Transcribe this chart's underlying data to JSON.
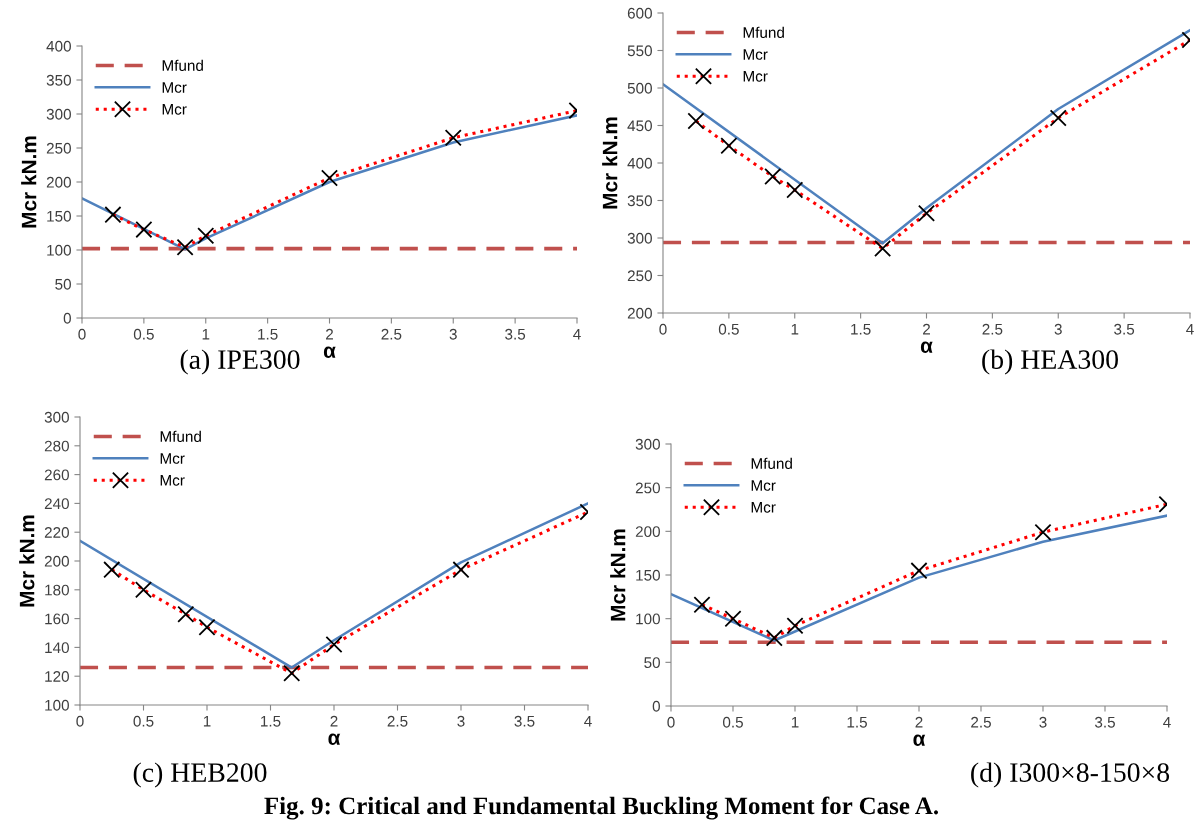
{
  "chart_data": [
    {
      "type": "line",
      "title": "(a) IPE300",
      "xlabel": "α",
      "ylabel": "Mcr kN.m",
      "xlim": [
        0,
        4
      ],
      "xticks": [
        0,
        0.5,
        1,
        1.5,
        2,
        2.5,
        3,
        3.5,
        4
      ],
      "ylim": [
        0,
        400
      ],
      "yticks": [
        0,
        50,
        100,
        150,
        200,
        250,
        300,
        350,
        400
      ],
      "grid": false,
      "legend": "top left",
      "series": [
        {
          "name": "Mfund",
          "color": "#c0504d",
          "line_style": "dashed",
          "marker": "none",
          "x": [
            0,
            4
          ],
          "values": [
            102,
            102
          ]
        },
        {
          "name": "Mcr",
          "color": "#4f81bd",
          "line_style": "solid",
          "marker": "none",
          "x": [
            0,
            0.833,
            1,
            2,
            3,
            4
          ],
          "values": [
            176,
            101,
            117,
            200,
            258,
            298
          ]
        },
        {
          "name": "Mcr",
          "color": "#ff0000",
          "line_style": "dotted",
          "marker": "cross",
          "x": [
            0.25,
            0.5,
            0.833,
            1,
            2,
            3,
            4
          ],
          "values": [
            152,
            130,
            104,
            121,
            206,
            265,
            305
          ]
        }
      ]
    },
    {
      "type": "line",
      "title": "(b) HEA300",
      "xlabel": "α",
      "ylabel": "Mcr kN.m",
      "xlim": [
        0,
        4
      ],
      "xticks": [
        0,
        0.5,
        1,
        1.5,
        2,
        2.5,
        3,
        3.5,
        4
      ],
      "ylim": [
        200,
        600
      ],
      "yticks": [
        200,
        250,
        300,
        350,
        400,
        450,
        500,
        550,
        600
      ],
      "grid": false,
      "legend": "top left",
      "series": [
        {
          "name": "Mfund",
          "color": "#c0504d",
          "line_style": "dashed",
          "marker": "none",
          "x": [
            0,
            4
          ],
          "values": [
            294,
            294
          ]
        },
        {
          "name": "Mcr",
          "color": "#4f81bd",
          "line_style": "solid",
          "marker": "none",
          "x": [
            0,
            1.667,
            2,
            3,
            4
          ],
          "values": [
            505,
            293,
            340,
            472,
            577
          ]
        },
        {
          "name": "Mcr",
          "color": "#ff0000",
          "line_style": "dotted",
          "marker": "cross",
          "x": [
            0.25,
            0.5,
            0.833,
            1,
            1.667,
            2,
            3,
            4
          ],
          "values": [
            456,
            423,
            382,
            364,
            286,
            333,
            460,
            564
          ]
        }
      ]
    },
    {
      "type": "line",
      "title": "(c) HEB200",
      "xlabel": "α",
      "ylabel": "Mcr kN.m",
      "xlim": [
        0,
        4
      ],
      "xticks": [
        0,
        0.5,
        1,
        1.5,
        2,
        2.5,
        3,
        3.5,
        4
      ],
      "ylim": [
        100,
        300
      ],
      "yticks": [
        100,
        120,
        140,
        160,
        180,
        200,
        220,
        240,
        260,
        280,
        300
      ],
      "grid": false,
      "legend": "top left",
      "series": [
        {
          "name": "Mfund",
          "color": "#c0504d",
          "line_style": "dashed",
          "marker": "none",
          "x": [
            0,
            4
          ],
          "values": [
            126,
            126
          ]
        },
        {
          "name": "Mcr",
          "color": "#4f81bd",
          "line_style": "solid",
          "marker": "none",
          "x": [
            0,
            1.667,
            2,
            3,
            4
          ],
          "values": [
            214,
            126,
            145,
            199,
            240
          ]
        },
        {
          "name": "Mcr",
          "color": "#ff0000",
          "line_style": "dotted",
          "marker": "cross",
          "x": [
            0.25,
            0.5,
            0.833,
            1,
            1.667,
            2,
            3,
            4
          ],
          "values": [
            194,
            180,
            163,
            154,
            122,
            142,
            194,
            234
          ]
        }
      ]
    },
    {
      "type": "line",
      "title": "(d) I300×8-150×8",
      "xlabel": "α",
      "ylabel": "Mcr kN.m",
      "xlim": [
        0,
        4
      ],
      "xticks": [
        0,
        0.5,
        1,
        1.5,
        2,
        2.5,
        3,
        3.5,
        4
      ],
      "ylim": [
        0,
        300
      ],
      "yticks": [
        0,
        50,
        100,
        150,
        200,
        250,
        300
      ],
      "grid": false,
      "legend": "top left",
      "annotations": [
        "Fig. 9: Critical and Fundamental Buckling Moment for Case A."
      ],
      "series": [
        {
          "name": "Mfund",
          "color": "#c0504d",
          "line_style": "dashed",
          "marker": "none",
          "x": [
            0,
            4
          ],
          "values": [
            73,
            73
          ]
        },
        {
          "name": "Mcr",
          "color": "#4f81bd",
          "line_style": "solid",
          "marker": "none",
          "x": [
            0,
            0.833,
            2,
            3,
            4
          ],
          "values": [
            128,
            75,
            147,
            188,
            218
          ]
        },
        {
          "name": "Mcr",
          "color": "#ff0000",
          "line_style": "dotted",
          "marker": "cross",
          "x": [
            0.25,
            0.5,
            0.833,
            1,
            2,
            3,
            4
          ],
          "values": [
            116,
            100,
            78,
            92,
            155,
            199,
            231
          ]
        }
      ]
    }
  ]
}
